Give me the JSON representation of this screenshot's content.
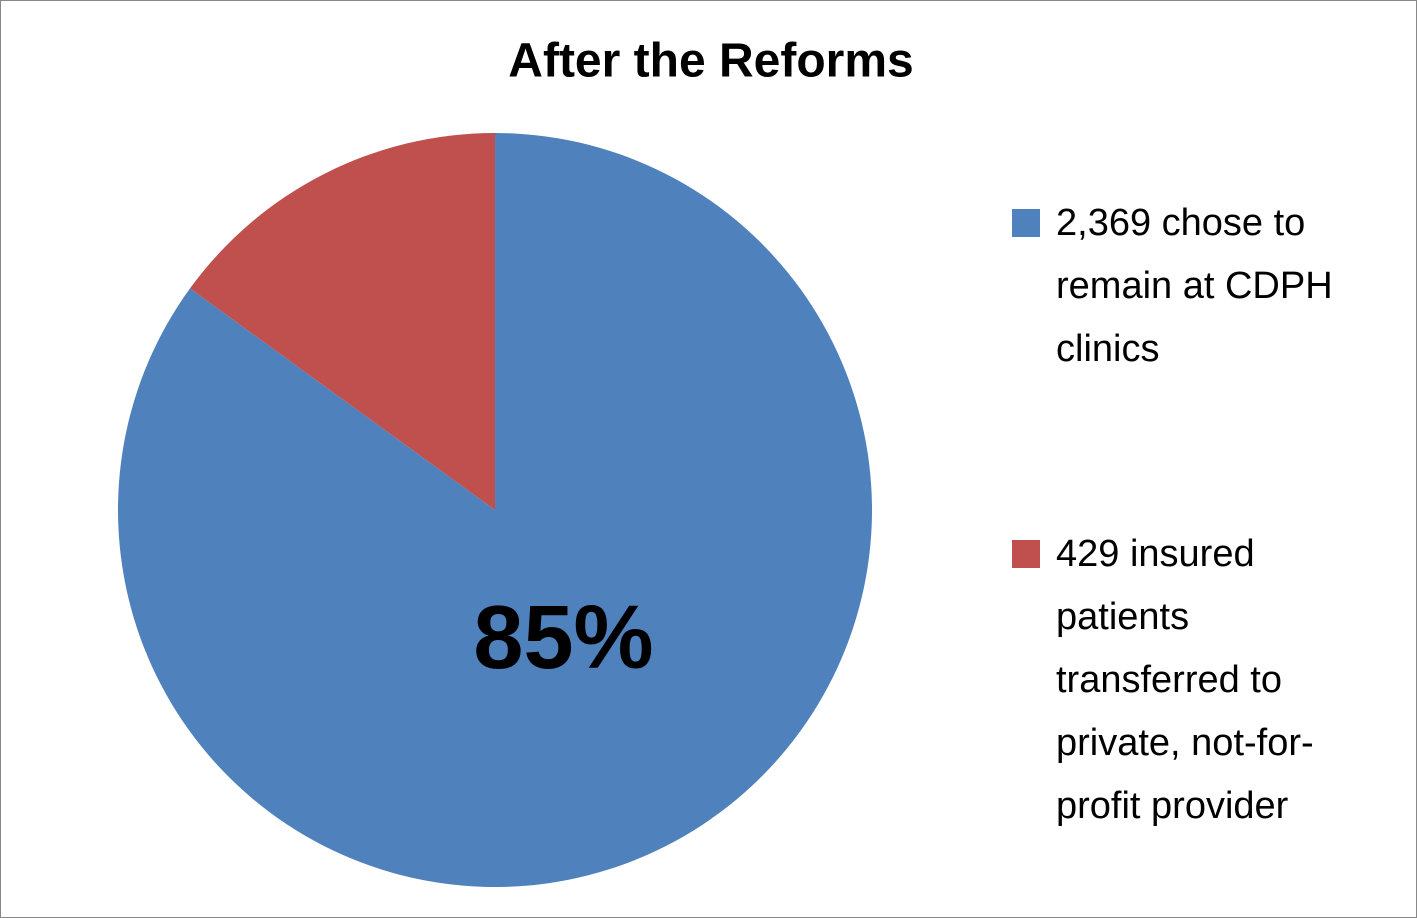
{
  "chart_data": {
    "type": "pie",
    "title": "After the Reforms",
    "categories": [
      "2,369 chose to remain at CDPH clinics",
      "429 insured patients transferred to private, not-for-profit provider"
    ],
    "values": [
      85,
      15
    ],
    "value_labels": [
      "85%",
      null
    ],
    "colors": [
      "#4f81bd",
      "#c0504d"
    ],
    "legend": "right"
  }
}
